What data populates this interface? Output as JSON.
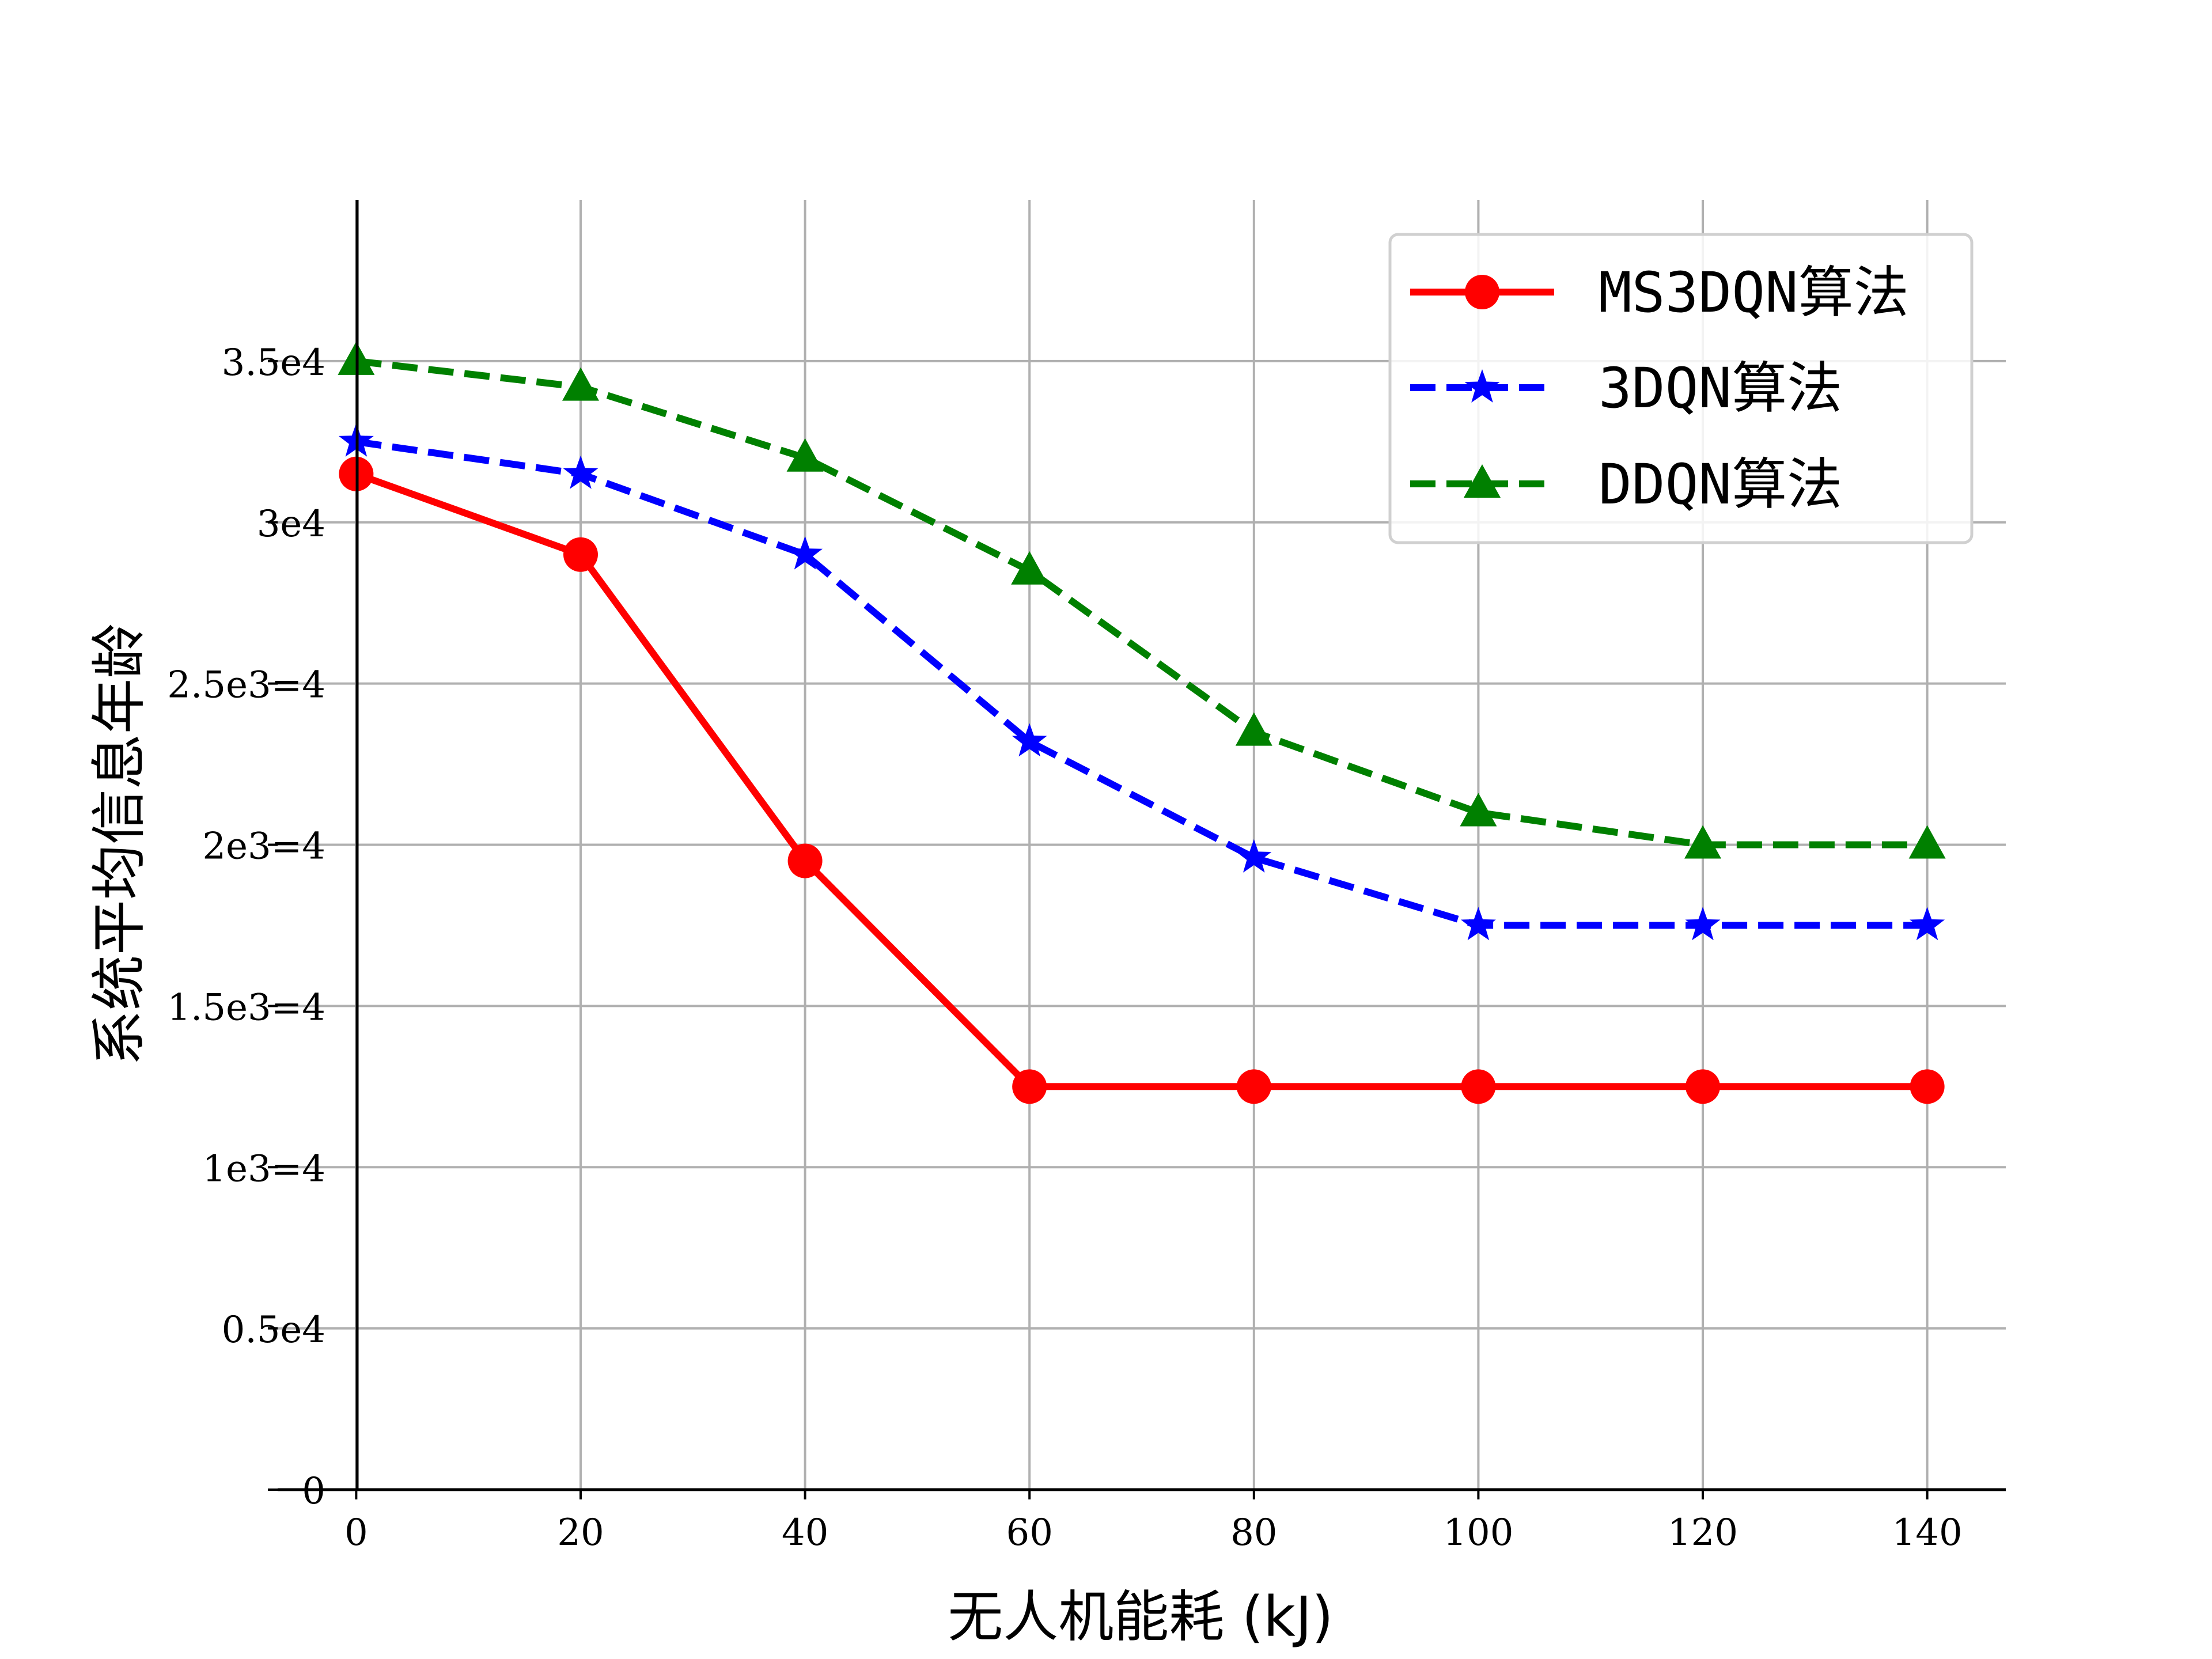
{
  "chart_data": {
    "type": "line",
    "xlabel": "无人机能耗 (kJ)",
    "ylabel": "系统平均信息年龄",
    "xlim": [
      -7,
      147
    ],
    "ylim": [
      0,
      40000
    ],
    "grid": true,
    "legend_position": "top-right",
    "x": [
      0,
      20,
      40,
      60,
      80,
      100,
      120,
      140
    ],
    "x_ticks": [
      {
        "value": 0,
        "label": "0"
      },
      {
        "value": 20,
        "label": "20"
      },
      {
        "value": 40,
        "label": "40"
      },
      {
        "value": 60,
        "label": "60"
      },
      {
        "value": 80,
        "label": "80"
      },
      {
        "value": 100,
        "label": "100"
      },
      {
        "value": 120,
        "label": "120"
      },
      {
        "value": 140,
        "label": "140"
      }
    ],
    "y_ticks": [
      {
        "value": 0,
        "label": "0"
      },
      {
        "value": 5000,
        "label": "0.5e4"
      },
      {
        "value": 10000,
        "label": "1e3=4"
      },
      {
        "value": 15000,
        "label": "1.5e3=4"
      },
      {
        "value": 20000,
        "label": "2e3=4"
      },
      {
        "value": 25000,
        "label": "2.5e3=4"
      },
      {
        "value": 30000,
        "label": "3e4"
      },
      {
        "value": 35000,
        "label": "3.5e4"
      }
    ],
    "series": [
      {
        "name": "MS3DQN算法",
        "color": "#ff0000",
        "line_style": "solid",
        "marker": "circle",
        "values": [
          31500,
          29000,
          19500,
          12500,
          12500,
          12500,
          12500,
          12500
        ]
      },
      {
        "name": "3DQN算法",
        "color": "#0000ff",
        "line_style": "dashed",
        "marker": "star",
        "values": [
          32500,
          31500,
          29000,
          23200,
          19600,
          17500,
          17500,
          17500
        ]
      },
      {
        "name": "DDQN算法",
        "color": "#008000",
        "line_style": "dashed",
        "marker": "triangle",
        "values": [
          35000,
          34200,
          32000,
          28500,
          23500,
          21000,
          20000,
          20000
        ]
      }
    ]
  }
}
